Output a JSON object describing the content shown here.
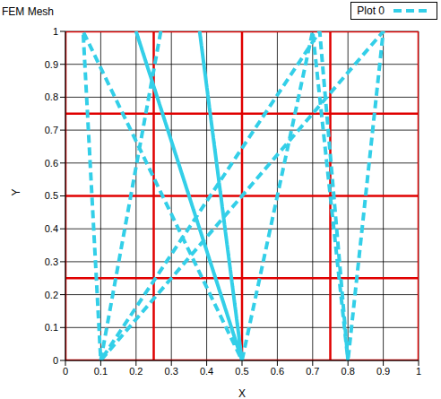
{
  "chart_data": {
    "type": "line",
    "title": "FEM Mesh",
    "x_label": "X",
    "y_label": "Y",
    "xlim": [
      0,
      1
    ],
    "ylim": [
      0,
      1
    ],
    "xticks": [
      0,
      0.1,
      0.2,
      0.3,
      0.4,
      0.5,
      0.6,
      0.7,
      0.8,
      0.9,
      1
    ],
    "yticks": [
      0,
      0.1,
      0.2,
      0.3,
      0.4,
      0.5,
      0.6,
      0.7,
      0.8,
      0.9,
      1
    ],
    "grid": true,
    "legend": "top-right",
    "x": [
      0.27,
      0.1,
      0.05,
      0.5,
      0.2,
      0.5,
      0.38,
      0.5,
      0.7,
      0.8,
      0.72,
      0.1,
      0.9,
      0.8
    ],
    "series": [
      {
        "name": "Plot 0",
        "color": "#33cfe8",
        "line_style": "dashed",
        "values": [
          1,
          0,
          1,
          0,
          1,
          0,
          1,
          0,
          1,
          0,
          1,
          0,
          1,
          0
        ]
      }
    ],
    "mesh": {
      "color": "#e00000",
      "x": [
        0,
        0.25,
        0.5,
        0.75,
        1
      ],
      "y": [
        0,
        0.25,
        0.5,
        0.75,
        1
      ]
    }
  }
}
